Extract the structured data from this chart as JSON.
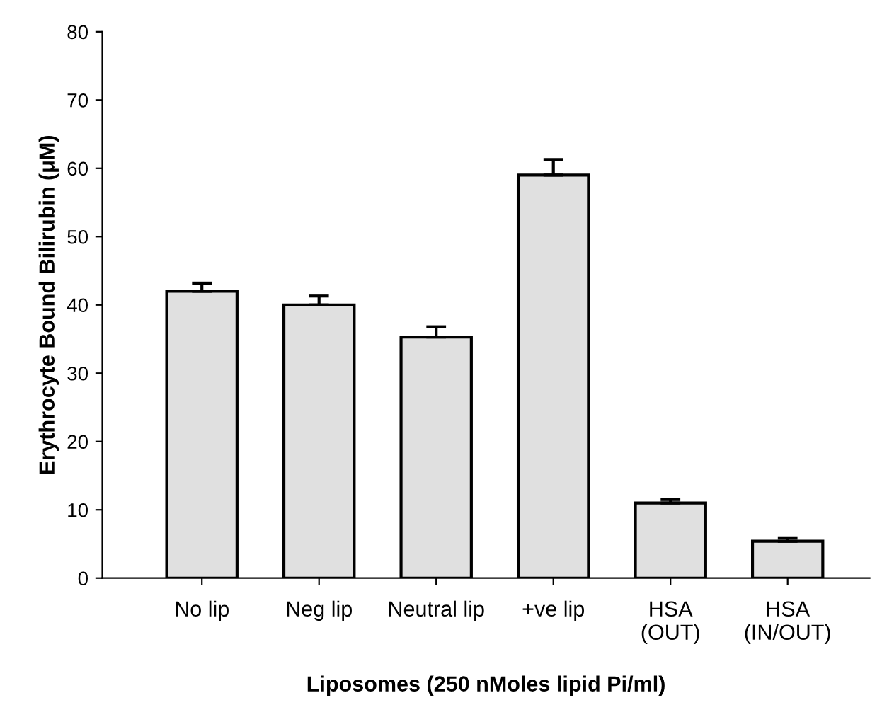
{
  "chart_data": {
    "type": "bar",
    "ylabel": "Erythrocyte Bound Bilirubin (μM)",
    "xlabel": "Liposomes (250 nMoles lipid Pi/ml)",
    "categories": [
      "No lip",
      "Neg lip",
      "Neutral lip",
      "+ve lip",
      "HSA\n(OUT)",
      "HSA\n(IN/OUT)"
    ],
    "values": [
      42,
      40,
      35.3,
      59,
      11,
      5.4
    ],
    "errors": [
      [
        42,
        43.2
      ],
      [
        40,
        41.3
      ],
      [
        35.3,
        36.8
      ],
      [
        59,
        61.3
      ],
      [
        11,
        11.5
      ],
      [
        5.4,
        5.9
      ]
    ],
    "color": "#e0e0e0",
    "ylim": [
      0,
      80
    ],
    "yticks": [
      0,
      10,
      20,
      30,
      40,
      50,
      60,
      70,
      80
    ],
    "grid": false,
    "legend": false
  }
}
